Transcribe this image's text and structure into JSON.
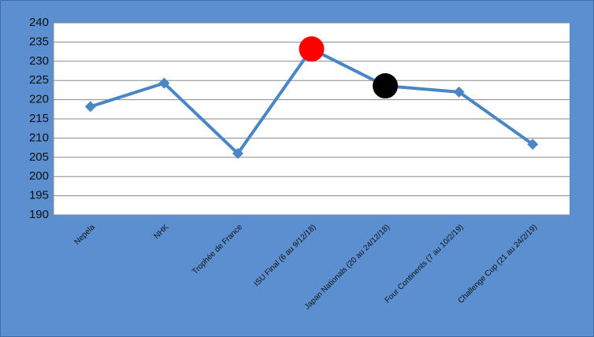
{
  "chart_data": {
    "type": "line",
    "categories": [
      "Nepela",
      "NHK",
      "Trophée de France",
      "ISU Final (6 au 9/12/18)",
      "Japan Nationals (20 au 24/12/18)",
      "Four Continents (7 au 10/2/19)",
      "Challenge Cup (21 au 24/2/19)"
    ],
    "series": [
      {
        "color": "#4a86c5",
        "values": [
          218.2,
          224.3,
          206.0,
          233.2,
          223.6,
          222.0,
          208.4
        ],
        "marker_colors": [
          "#4a86c5",
          "#4a86c5",
          "#4a86c5",
          "#ff0000",
          "#000000",
          "#4a86c5",
          "#4a86c5"
        ]
      }
    ],
    "ylim": [
      190,
      240
    ],
    "yticks": [
      190,
      195,
      200,
      205,
      210,
      215,
      220,
      225,
      230,
      235,
      240
    ],
    "grid": true
  }
}
